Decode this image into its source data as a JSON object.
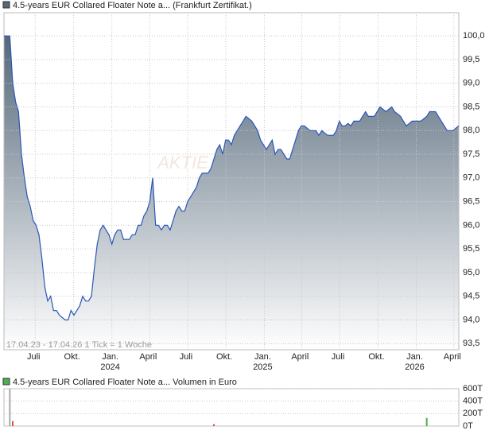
{
  "chart_data": [
    {
      "type": "area",
      "title": "4.5-years EUR Collared Floater Note a... (Frankfurt Zertifikat.)",
      "watermark": "AKTIE",
      "footer": "17.04.23 - 17.04.26   1 Tick = 1 Woche",
      "color": "#2a56b8",
      "fill_color": "#55687a",
      "xlim": [
        0,
        156
      ],
      "xticks": [
        {
          "value": 10.7,
          "label": "Juli"
        },
        {
          "value": 23.9,
          "label": "Okt."
        },
        {
          "value": 37,
          "label": "Jan.",
          "year": "2024"
        },
        {
          "value": 50,
          "label": "April"
        },
        {
          "value": 63,
          "label": "Juli"
        },
        {
          "value": 76.1,
          "label": "Okt."
        },
        {
          "value": 89.3,
          "label": "Jan.",
          "year": "2025"
        },
        {
          "value": 102.1,
          "label": "April"
        },
        {
          "value": 115.1,
          "label": "Juli"
        },
        {
          "value": 128.3,
          "label": "Okt."
        },
        {
          "value": 141.4,
          "label": "Jan.",
          "year": "2026"
        },
        {
          "value": 154.3,
          "label": "April"
        }
      ],
      "ylim": [
        93.37,
        100.49
      ],
      "yticks": [
        {
          "value": 93.5,
          "label": "93,5"
        },
        {
          "value": 94,
          "label": "94,0"
        },
        {
          "value": 94.5,
          "label": "94,5"
        },
        {
          "value": 95,
          "label": "95,0"
        },
        {
          "value": 95.5,
          "label": "95,5"
        },
        {
          "value": 96,
          "label": "96,0"
        },
        {
          "value": 96.5,
          "label": "96,5"
        },
        {
          "value": 97,
          "label": "97,0"
        },
        {
          "value": 97.5,
          "label": "97,5"
        },
        {
          "value": 98,
          "label": "98,0"
        },
        {
          "value": 98.5,
          "label": "98,5"
        },
        {
          "value": 99,
          "label": "99,0"
        },
        {
          "value": 99.5,
          "label": "99,5"
        },
        {
          "value": 100,
          "label": "100,0"
        }
      ],
      "grid": true,
      "values": [
        100.0,
        100.0,
        100.0,
        99.0,
        98.6,
        98.4,
        97.5,
        97.0,
        96.6,
        96.4,
        96.1,
        96.0,
        95.8,
        95.3,
        94.7,
        94.4,
        94.5,
        94.2,
        94.2,
        94.1,
        94.05,
        94.0,
        94.0,
        94.2,
        94.1,
        94.2,
        94.3,
        94.5,
        94.4,
        94.4,
        94.5,
        95.1,
        95.6,
        95.9,
        96.0,
        95.9,
        95.8,
        95.6,
        95.8,
        95.9,
        95.9,
        95.7,
        95.7,
        95.7,
        95.8,
        95.8,
        96.0,
        96.0,
        96.2,
        96.3,
        96.5,
        97.0,
        96.0,
        96.0,
        95.9,
        96.0,
        96.0,
        95.9,
        96.1,
        96.3,
        96.4,
        96.3,
        96.3,
        96.5,
        96.6,
        96.7,
        96.8,
        97.0,
        97.1,
        97.1,
        97.1,
        97.2,
        97.4,
        97.6,
        97.7,
        97.5,
        97.8,
        97.8,
        97.7,
        97.9,
        98.0,
        98.1,
        98.2,
        98.3,
        98.25,
        98.2,
        98.1,
        98.0,
        97.8,
        97.7,
        97.6,
        97.7,
        97.8,
        97.5,
        97.6,
        97.6,
        97.5,
        97.4,
        97.4,
        97.6,
        97.8,
        98.0,
        98.1,
        98.1,
        98.05,
        98.0,
        98.0,
        98.0,
        97.9,
        98.0,
        97.95,
        97.9,
        97.9,
        97.9,
        98.0,
        98.2,
        98.1,
        98.1,
        98.15,
        98.1,
        98.2,
        98.2,
        98.2,
        98.3,
        98.4,
        98.3,
        98.3,
        98.3,
        98.4,
        98.5,
        98.45,
        98.4,
        98.45,
        98.5,
        98.4,
        98.35,
        98.3,
        98.2,
        98.1,
        98.15,
        98.2,
        98.2,
        98.2,
        98.2,
        98.25,
        98.3,
        98.4,
        98.4,
        98.4,
        98.3,
        98.2,
        98.1,
        98.0,
        98.0,
        98.0,
        98.05,
        98.1
      ]
    },
    {
      "type": "volume",
      "title": "4.5-years EUR Collared Floater Note a... Volumen in Euro",
      "legend_color": "#4caf50",
      "xlim": [
        0,
        156
      ],
      "ylim": [
        0,
        600000
      ],
      "yticks": [
        {
          "value": 0,
          "label": "0T"
        },
        {
          "value": 200000,
          "label": "200T"
        },
        {
          "value": 400000,
          "label": "400T"
        },
        {
          "value": 600000,
          "label": "600T"
        }
      ],
      "x": [
        2,
        3,
        72,
        145
      ],
      "values": [
        600000,
        80000,
        30000,
        130000
      ],
      "colors": [
        "#aaaaaa",
        "#e05050",
        "#e05050",
        "#4caf50"
      ]
    }
  ]
}
